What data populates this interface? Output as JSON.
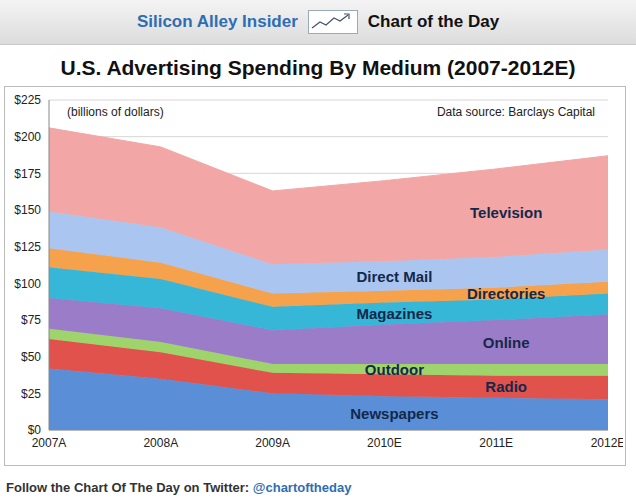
{
  "header": {
    "brand": "Silicon Alley Insider",
    "feature": "Chart of the Day"
  },
  "footer": {
    "text": "Follow the Chart Of The Day on Twitter:",
    "link": "@chartoftheday"
  },
  "chart_data": {
    "type": "area",
    "title": "U.S. Advertising Spending By Medium (2007-2012E)",
    "annotations": [
      "(billions of dollars)",
      "Data source: Barclays Capital"
    ],
    "stacked": true,
    "grid": true,
    "categories": [
      "2007A",
      "2008A",
      "2009A",
      "2010E",
      "2011E",
      "2012E"
    ],
    "ylim": [
      0,
      225
    ],
    "yticks": [
      {
        "value": 0,
        "label": "$0"
      },
      {
        "value": 25,
        "label": "$25"
      },
      {
        "value": 50,
        "label": "$50"
      },
      {
        "value": 75,
        "label": "$75"
      },
      {
        "value": 100,
        "label": "$100"
      },
      {
        "value": 125,
        "label": "$125"
      },
      {
        "value": 150,
        "label": "$150"
      },
      {
        "value": 175,
        "label": "$175"
      },
      {
        "value": 200,
        "label": "$200"
      },
      {
        "value": 225,
        "label": "$225"
      }
    ],
    "series": [
      {
        "name": "Newspapers",
        "color": "#5a8fd8",
        "values": [
          42,
          35,
          25,
          23,
          22,
          21
        ]
      },
      {
        "name": "Radio",
        "color": "#e2524d",
        "values": [
          20,
          18,
          14,
          15,
          15,
          16
        ]
      },
      {
        "name": "Outdoor",
        "color": "#9fd46c",
        "values": [
          7,
          7,
          6,
          7,
          8,
          8
        ]
      },
      {
        "name": "Online",
        "color": "#9b7cc9",
        "values": [
          21,
          23,
          23,
          27,
          30,
          34
        ]
      },
      {
        "name": "Magazines",
        "color": "#36b7d8",
        "values": [
          21,
          20,
          16,
          15,
          14,
          14
        ]
      },
      {
        "name": "Directories",
        "color": "#f6a24c",
        "values": [
          13,
          11,
          9,
          8,
          8,
          8
        ]
      },
      {
        "name": "Direct Mail",
        "color": "#aac6f0",
        "values": [
          25,
          24,
          20,
          20,
          21,
          22
        ]
      },
      {
        "name": "Television",
        "color": "#f2a6a6",
        "values": [
          57,
          55,
          50,
          55,
          60,
          64
        ]
      }
    ]
  }
}
